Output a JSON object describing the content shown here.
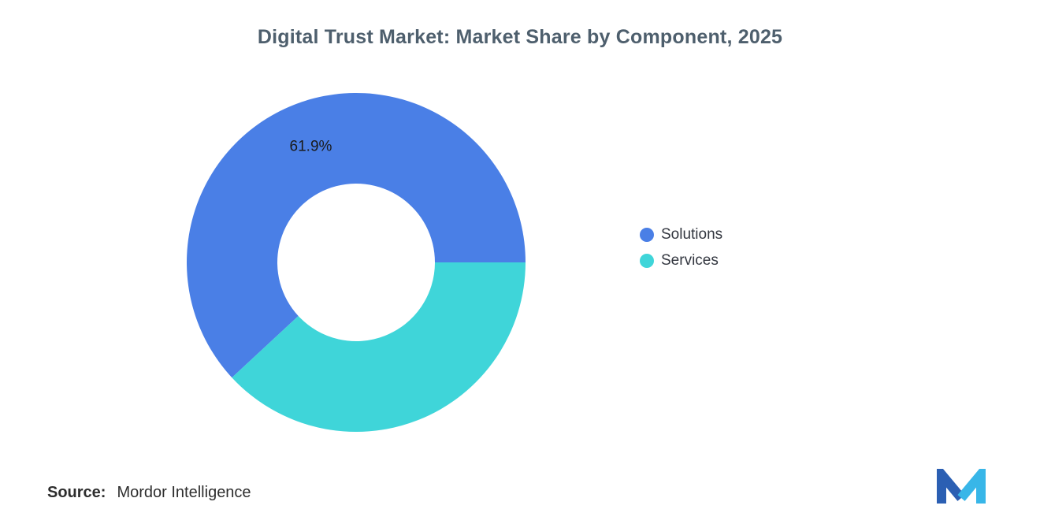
{
  "title": "Digital Trust Market: Market Share by Component, 2025",
  "chart_data": {
    "type": "pie",
    "subtype": "donut",
    "title": "Digital Trust Market: Market Share by Component, 2025",
    "categories": [
      "Solutions",
      "Services"
    ],
    "values": [
      61.9,
      38.1
    ],
    "unit": "%",
    "colors": [
      "#4A7FE6",
      "#3FD5D9"
    ],
    "slice_labels": [
      "61.9%",
      ""
    ],
    "start_angle_deg": 137.16,
    "inner_radius_ratio": 0.465,
    "legend_position": "right",
    "grid": false
  },
  "legend": {
    "items": [
      {
        "label": "Solutions"
      },
      {
        "label": "Services"
      }
    ]
  },
  "footer": {
    "source_label": "Source:",
    "source_value": "Mordor Intelligence"
  },
  "logo": {
    "name": "Mordor Intelligence",
    "colors": [
      "#2B5FB3",
      "#38B6E8"
    ]
  }
}
